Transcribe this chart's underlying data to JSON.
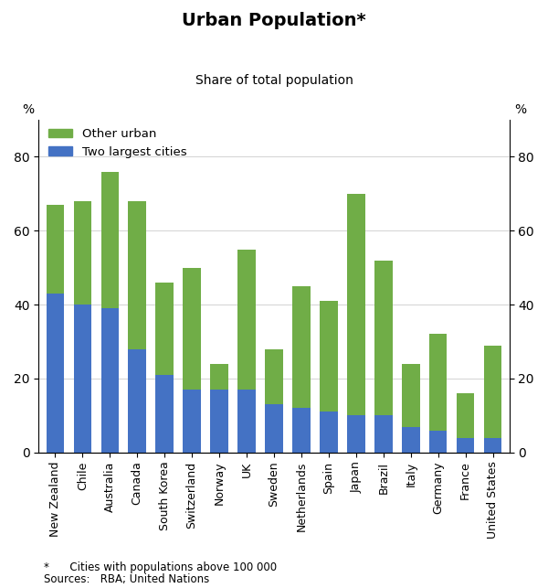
{
  "title": "Urban Population*",
  "subtitle": "Share of total population",
  "ylabel_left": "%",
  "ylabel_right": "%",
  "footnote": "*      Cities with populations above 100 000",
  "sources": "Sources:   RBA; United Nations",
  "categories": [
    "New Zealand",
    "Chile",
    "Australia",
    "Canada",
    "South Korea",
    "Switzerland",
    "Norway",
    "UK",
    "Sweden",
    "Netherlands",
    "Spain",
    "Japan",
    "Brazil",
    "Italy",
    "Germany",
    "France",
    "United States"
  ],
  "two_largest": [
    43,
    40,
    39,
    28,
    21,
    17,
    17,
    17,
    13,
    12,
    11,
    10,
    10,
    7,
    6,
    4,
    4
  ],
  "other_urban": [
    24,
    28,
    37,
    40,
    25,
    33,
    7,
    38,
    15,
    33,
    30,
    60,
    42,
    17,
    26,
    12,
    25
  ],
  "blue_color": "#4472C4",
  "green_color": "#70AD47",
  "ylim": [
    0,
    90
  ],
  "yticks": [
    0,
    20,
    40,
    60,
    80
  ],
  "bar_width": 0.65,
  "figsize": [
    6.0,
    6.43
  ],
  "dpi": 100
}
